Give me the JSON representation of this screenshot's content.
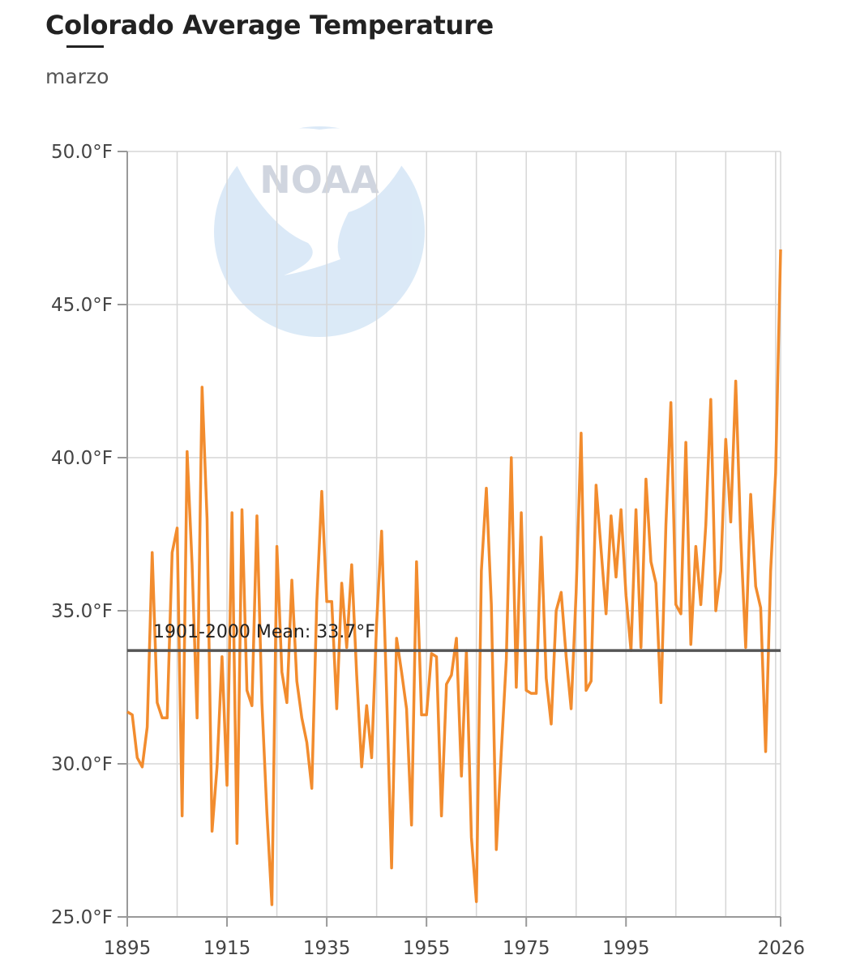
{
  "header": {
    "title": "Colorado Average Temperature",
    "subtitle": "marzo"
  },
  "watermark": {
    "text": "NOAA",
    "icon": "noaa-logo"
  },
  "chart_data": {
    "type": "line",
    "title": "Colorado Average Temperature",
    "subtitle": "marzo",
    "xlabel": "",
    "ylabel": "",
    "xlim": [
      1895,
      2026
    ],
    "ylim": [
      25,
      50
    ],
    "x_ticks": [
      1895,
      1915,
      1935,
      1955,
      1975,
      1995,
      2026
    ],
    "y_ticks": [
      25,
      30,
      35,
      40,
      45,
      50
    ],
    "y_tick_labels": [
      "25.0°F",
      "30.0°F",
      "35.0°F",
      "40.0°F",
      "45.0°F",
      "50.0°F"
    ],
    "grid": true,
    "line_color": "#f28c2e",
    "mean": {
      "label": "1901-2000 Mean: 33.7°F",
      "value": 33.7,
      "color": "#555555"
    },
    "series": [
      {
        "x_start": 1895,
        "values": [
          31.7,
          31.6,
          30.2,
          29.9,
          31.2,
          36.9,
          32.0,
          31.5,
          31.5,
          36.9,
          37.7,
          28.3,
          40.2,
          36.5,
          31.5,
          42.3,
          38.0,
          27.8,
          29.9,
          33.5,
          29.3,
          38.2,
          27.4,
          38.3,
          32.4,
          31.9,
          38.1,
          32.0,
          28.4,
          25.4,
          37.1,
          33.0,
          32.0,
          36.0,
          32.7,
          31.5,
          30.7,
          29.2,
          35.3,
          38.9,
          35.3,
          35.3,
          31.8,
          35.9,
          33.8,
          36.5,
          32.9,
          29.9,
          31.9,
          30.2,
          34.6,
          37.6,
          32.3,
          26.6,
          34.1,
          33.0,
          31.8,
          28.0,
          36.6,
          31.6,
          31.6,
          33.6,
          33.5,
          28.3,
          32.6,
          32.9,
          34.1,
          29.6,
          33.7,
          27.6,
          25.5,
          36.3,
          39.0,
          35.2,
          27.2,
          30.4,
          33.4,
          40.0,
          32.5,
          38.2,
          32.4,
          32.3,
          32.3,
          37.4,
          32.8,
          31.3,
          35.0,
          35.6,
          33.5,
          31.8,
          35.6,
          40.8,
          32.4,
          32.7,
          39.1,
          37.0,
          34.9,
          38.1,
          36.1,
          38.3,
          35.5,
          33.7,
          38.3,
          33.8,
          39.3,
          36.6,
          35.9,
          32.0,
          37.8,
          41.8,
          35.2,
          34.9,
          40.5,
          33.9,
          37.1,
          35.2,
          37.8,
          41.9,
          35.0,
          36.3,
          40.6,
          37.9,
          42.5,
          37.4,
          33.8,
          38.8,
          35.8,
          35.1,
          30.4,
          36.3,
          39.5,
          46.8
        ]
      }
    ]
  }
}
